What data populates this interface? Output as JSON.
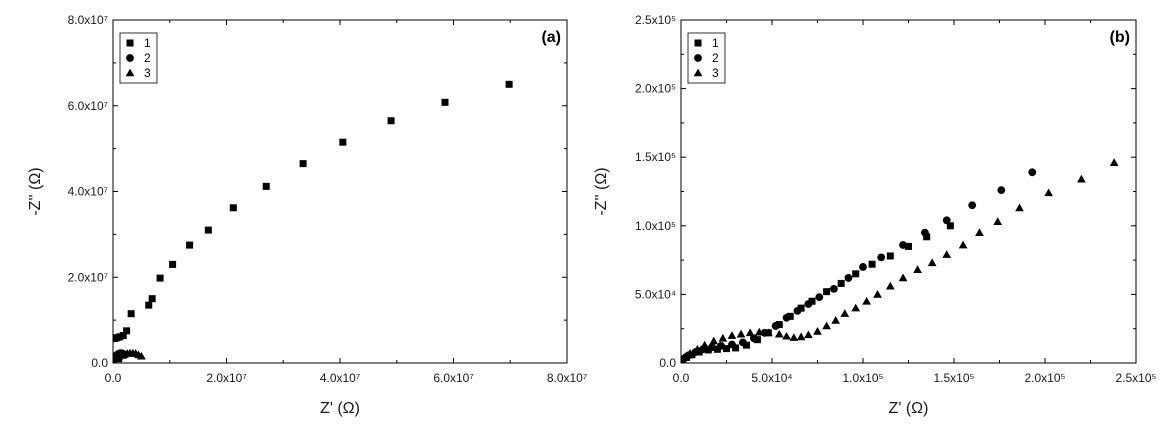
{
  "chart_data": [
    {
      "type": "scatter",
      "panel_label": "(a)",
      "xlabel": "Z' (Ω)",
      "ylabel": "-Z'' (Ω)",
      "xlim": [
        0,
        80000000
      ],
      "ylim": [
        0,
        80000000
      ],
      "x_tick_labels": [
        "0.0",
        "2.0x10⁷",
        "4.0x10⁷",
        "6.0x10⁷",
        "8.0x10⁷"
      ],
      "y_tick_labels": [
        "0.0",
        "2.0x10⁷",
        "4.0x10⁷",
        "6.0x10⁷",
        "8.0x10⁷"
      ],
      "legend_position": "top-left",
      "series": [
        {
          "name": "1",
          "marker": "square",
          "points": [
            [
              300000,
              5700000
            ],
            [
              700000,
              5900000
            ],
            [
              1200000,
              6100000
            ],
            [
              1800000,
              6400000
            ],
            [
              2400000,
              7500000
            ],
            [
              3200000,
              11500000
            ],
            [
              6300000,
              13500000
            ],
            [
              6900000,
              15000000
            ],
            [
              8300000,
              19800000
            ],
            [
              10500000,
              23000000
            ],
            [
              13500000,
              27500000
            ],
            [
              16800000,
              31000000
            ],
            [
              21200000,
              36200000
            ],
            [
              27000000,
              41200000
            ],
            [
              33500000,
              46500000
            ],
            [
              40500000,
              51500000
            ],
            [
              49000000,
              56500000
            ],
            [
              58500000,
              60800000
            ],
            [
              69800000,
              65000000
            ],
            [
              500000,
              1500000
            ],
            [
              1000000,
              1000000
            ],
            [
              1500000,
              2000000
            ]
          ]
        },
        {
          "name": "2",
          "marker": "circle",
          "points": [
            [
              150000,
              800000
            ],
            [
              350000,
              1400000
            ],
            [
              600000,
              1800000
            ],
            [
              900000,
              2100000
            ],
            [
              1300000,
              2300000
            ],
            [
              1700000,
              2200000
            ],
            [
              2100000,
              1900000
            ]
          ]
        },
        {
          "name": "3",
          "marker": "triangle",
          "points": [
            [
              1000000,
              1500000
            ],
            [
              1500000,
              1800000
            ],
            [
              2000000,
              2000000
            ],
            [
              2500000,
              2200000
            ],
            [
              3000000,
              2300000
            ],
            [
              3500000,
              2300000
            ],
            [
              4000000,
              2200000
            ],
            [
              4500000,
              1900000
            ],
            [
              5000000,
              1600000
            ]
          ]
        }
      ]
    },
    {
      "type": "scatter",
      "panel_label": "(b)",
      "xlabel": "Z' (Ω)",
      "ylabel": "-Z'' (Ω)",
      "xlim": [
        0,
        250000
      ],
      "ylim": [
        0,
        250000
      ],
      "x_tick_labels": [
        "0.0",
        "5.0x10⁴",
        "1.0x10⁵",
        "1.5x10⁵",
        "2.0x10⁵",
        "2.5x10⁵"
      ],
      "y_tick_labels": [
        "0.0",
        "5.0x10⁴",
        "1.0x10⁵",
        "1.5x10⁵",
        "2.0x10⁵",
        "2.5x10⁵"
      ],
      "legend_position": "top-left",
      "series": [
        {
          "name": "1",
          "marker": "square",
          "points": [
            [
              1000,
              2000
            ],
            [
              3000,
              4000
            ],
            [
              6000,
              6000
            ],
            [
              10000,
              8000
            ],
            [
              15000,
              9500
            ],
            [
              20000,
              10000
            ],
            [
              25000,
              10500
            ],
            [
              30000,
              11000
            ],
            [
              36000,
              13000
            ],
            [
              42000,
              17000
            ],
            [
              48000,
              22000
            ],
            [
              54000,
              28000
            ],
            [
              60000,
              34000
            ],
            [
              66000,
              40000
            ],
            [
              72000,
              45000
            ],
            [
              80000,
              52000
            ],
            [
              88000,
              58000
            ],
            [
              96000,
              65000
            ],
            [
              105000,
              72000
            ],
            [
              115000,
              78000
            ],
            [
              125000,
              85000
            ],
            [
              135000,
              92000
            ],
            [
              148000,
              100000
            ]
          ]
        },
        {
          "name": "2",
          "marker": "circle",
          "points": [
            [
              1500,
              3000
            ],
            [
              4000,
              5500
            ],
            [
              8000,
              8000
            ],
            [
              12000,
              10000
            ],
            [
              17000,
              11500
            ],
            [
              22000,
              12500
            ],
            [
              28000,
              13500
            ],
            [
              34000,
              15000
            ],
            [
              40000,
              18000
            ],
            [
              46000,
              22000
            ],
            [
              52000,
              27000
            ],
            [
              58000,
              33000
            ],
            [
              64000,
              38000
            ],
            [
              70000,
              43000
            ],
            [
              76000,
              48000
            ],
            [
              84000,
              54000
            ],
            [
              92000,
              62000
            ],
            [
              100000,
              70000
            ],
            [
              110000,
              77000
            ],
            [
              122000,
              86000
            ],
            [
              134000,
              95000
            ],
            [
              146000,
              104000
            ],
            [
              160000,
              115000
            ],
            [
              176000,
              126000
            ],
            [
              193000,
              139000
            ]
          ]
        },
        {
          "name": "3",
          "marker": "triangle",
          "points": [
            [
              2000,
              4000
            ],
            [
              5000,
              7000
            ],
            [
              9000,
              10000
            ],
            [
              13000,
              13000
            ],
            [
              18000,
              16000
            ],
            [
              23000,
              18000
            ],
            [
              28000,
              20000
            ],
            [
              33000,
              21000
            ],
            [
              38000,
              22000
            ],
            [
              43000,
              22500
            ],
            [
              48000,
              22000
            ],
            [
              54000,
              21000
            ],
            [
              58000,
              19500
            ],
            [
              62000,
              18500
            ],
            [
              66000,
              19000
            ],
            [
              70000,
              20500
            ],
            [
              75000,
              23000
            ],
            [
              80000,
              27000
            ],
            [
              85000,
              31000
            ],
            [
              90000,
              36000
            ],
            [
              96000,
              40000
            ],
            [
              102000,
              45000
            ],
            [
              108000,
              50000
            ],
            [
              115000,
              56000
            ],
            [
              122000,
              62000
            ],
            [
              130000,
              68000
            ],
            [
              138000,
              73000
            ],
            [
              146000,
              79000
            ],
            [
              155000,
              86000
            ],
            [
              164000,
              95000
            ],
            [
              174000,
              103000
            ],
            [
              186000,
              113000
            ],
            [
              202000,
              124000
            ],
            [
              220000,
              134000
            ],
            [
              238000,
              146000
            ]
          ]
        }
      ]
    }
  ]
}
